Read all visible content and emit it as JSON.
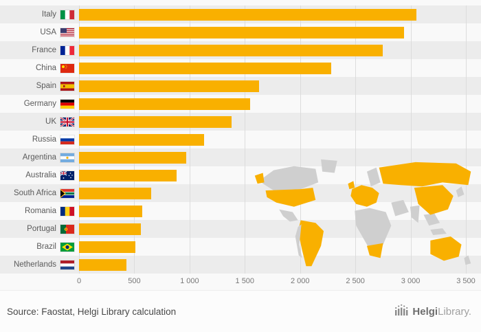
{
  "chart_data": {
    "type": "bar",
    "orientation": "horizontal",
    "title": "",
    "xlabel": "",
    "ylabel": "",
    "categories": [
      "Italy",
      "USA",
      "France",
      "China",
      "Spain",
      "Germany",
      "UK",
      "Russia",
      "Argentina",
      "Australia",
      "South Africa",
      "Romania",
      "Portugal",
      "Brazil",
      "Netherlands"
    ],
    "values": [
      3050,
      2940,
      2750,
      2280,
      1630,
      1550,
      1380,
      1130,
      970,
      880,
      650,
      570,
      560,
      510,
      430
    ],
    "flags": [
      "flag-italy-icon",
      "flag-usa-icon",
      "flag-france-icon",
      "flag-china-icon",
      "flag-spain-icon",
      "flag-germany-icon",
      "flag-uk-icon",
      "flag-russia-icon",
      "flag-argentina-icon",
      "flag-australia-icon",
      "flag-south-africa-icon",
      "flag-romania-icon",
      "flag-portugal-icon",
      "flag-brazil-icon",
      "flag-netherlands-icon"
    ],
    "xlim": [
      0,
      3500
    ],
    "xticks": [
      0,
      500,
      1000,
      1500,
      2000,
      2500,
      3000,
      3500
    ],
    "tick_labels": [
      "0",
      "500",
      "1 000",
      "1 500",
      "2 000",
      "2 500",
      "3 000",
      "3 500"
    ],
    "bar_color": "#f9b000",
    "map_highlight_color": "#f9b000",
    "map_base_color": "#cfcfcf",
    "grid": true,
    "legend": false
  },
  "footer": {
    "source": "Source: Faostat, Helgi Library calculation",
    "brand_bold": "Helgi",
    "brand_light": "Library."
  }
}
